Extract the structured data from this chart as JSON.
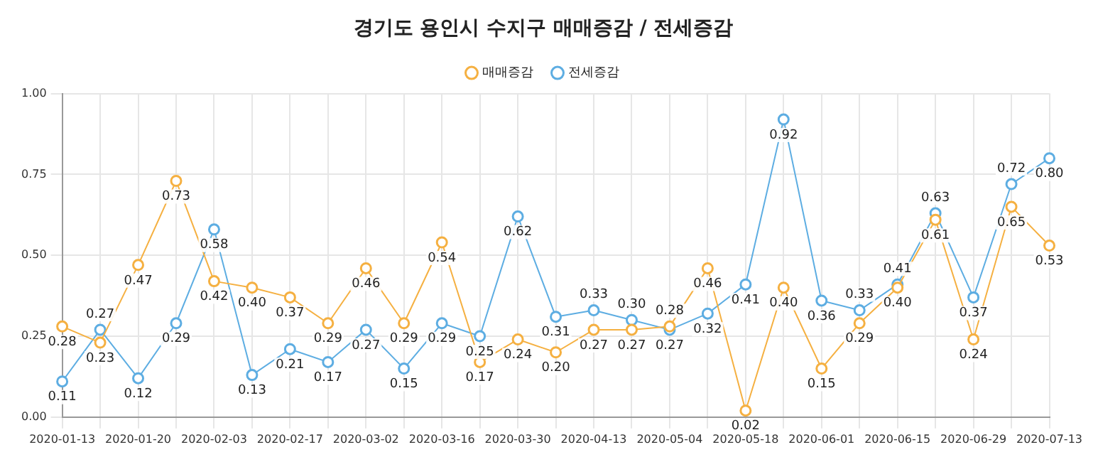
{
  "chart_data": {
    "type": "line",
    "title": "경기도 용인시 수지구 매매증감 / 전세증감",
    "categories": [
      "2020-01-13",
      null,
      "2020-01-20",
      null,
      "2020-02-03",
      null,
      "2020-02-17",
      null,
      "2020-03-02",
      null,
      "2020-03-16",
      null,
      "2020-03-30",
      null,
      "2020-04-13",
      null,
      "2020-05-04",
      null,
      "2020-05-18",
      null,
      "2020-06-01",
      null,
      "2020-06-15",
      null,
      "2020-06-29",
      null,
      "2020-07-13"
    ],
    "series": [
      {
        "name": "매매증감",
        "color": "#f5b041",
        "values": [
          0.28,
          0.23,
          0.47,
          0.73,
          0.42,
          0.4,
          0.37,
          0.29,
          0.46,
          0.29,
          0.54,
          0.17,
          0.24,
          0.2,
          0.27,
          0.27,
          0.28,
          0.46,
          0.02,
          0.4,
          0.15,
          0.29,
          0.4,
          0.61,
          0.24,
          0.65,
          0.53
        ],
        "value_labels": [
          "0.28",
          "0.23",
          "0.47",
          "0.73",
          "0.42",
          "0.40",
          "0.37",
          "0.29",
          "0.46",
          "0.29",
          "0.54",
          "0.17",
          "0.24",
          "0.20",
          "0.27",
          "0.27",
          "0.28",
          "0.46",
          "0.02",
          "0.40",
          "0.15",
          "0.29",
          "0.40",
          "0.61",
          "0.24",
          "0.65",
          "0.53"
        ]
      },
      {
        "name": "전세증감",
        "color": "#5dade2",
        "values": [
          0.11,
          0.27,
          0.12,
          0.29,
          0.58,
          0.13,
          0.21,
          0.17,
          0.27,
          0.15,
          0.29,
          0.25,
          0.62,
          0.31,
          0.33,
          0.3,
          0.27,
          0.32,
          0.41,
          0.92,
          0.36,
          0.33,
          0.41,
          0.63,
          0.37,
          0.72,
          0.8
        ],
        "value_labels": [
          "0.11",
          "0.27",
          "0.12",
          "0.29",
          "0.58",
          "0.13",
          "0.21",
          "0.17",
          "0.27",
          "0.15",
          "0.29",
          "0.25",
          "0.62",
          "0.31",
          "0.33",
          "0.30",
          "0.27",
          "0.32",
          "0.41",
          "0.92",
          "0.36",
          "0.33",
          "0.41",
          "0.63",
          "0.37",
          "0.72",
          "0.80"
        ]
      }
    ],
    "ylim": [
      0,
      1
    ],
    "yticks": [
      {
        "value": 0,
        "label": "0.00"
      },
      {
        "value": 0.25,
        "label": "0.25"
      },
      {
        "value": 0.5,
        "label": "0.50"
      },
      {
        "value": 0.75,
        "label": "0.75"
      },
      {
        "value": 1,
        "label": "1.00"
      }
    ],
    "grid": true,
    "legend": "top",
    "marker": "circle",
    "line_style": "solid"
  }
}
